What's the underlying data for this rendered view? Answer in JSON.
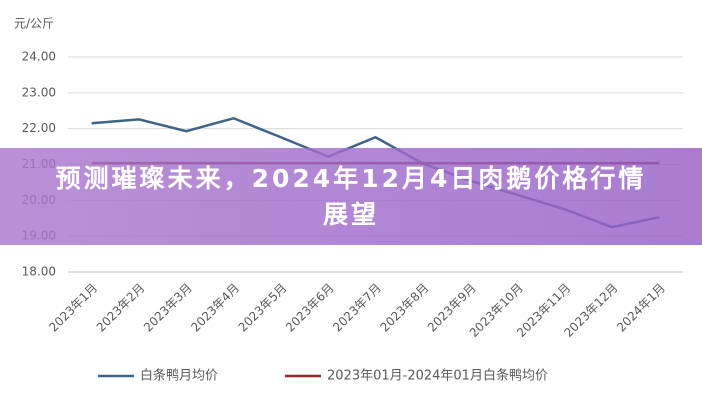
{
  "chart_data": {
    "type": "line",
    "ylabel": "元/公斤",
    "categories": [
      "2023年1月",
      "2023年2月",
      "2023年3月",
      "2023年4月",
      "2023年5月",
      "2023年6月",
      "2023年7月",
      "2023年8月",
      "2023年9月",
      "2023年10月",
      "2023年11月",
      "2023年12月",
      "2024年1月"
    ],
    "series": [
      {
        "name": "白条鸭月均价",
        "color": "#3f6389",
        "values": [
          22.15,
          22.26,
          21.93,
          22.29,
          21.76,
          21.22,
          21.76,
          21.03,
          20.55,
          20.15,
          19.75,
          19.25,
          19.53
        ]
      },
      {
        "name": "2023年01月-2024年01月白条鸭均价",
        "color": "#8b2a2a",
        "values": [
          21.04,
          21.04,
          21.04,
          21.04,
          21.04,
          21.04,
          21.04,
          21.04,
          21.04,
          21.04,
          21.04,
          21.04,
          21.04
        ]
      }
    ],
    "ylim": [
      18,
      24
    ],
    "yticks": [
      {
        "value": 18,
        "label": "18.00"
      },
      {
        "value": 19,
        "label": "19.00"
      },
      {
        "value": 20,
        "label": "20.00"
      },
      {
        "value": 21,
        "label": "21.00"
      },
      {
        "value": 22,
        "label": "22.00"
      },
      {
        "value": 23,
        "label": "23.00"
      },
      {
        "value": 24,
        "label": "24.00"
      }
    ],
    "grid": true
  },
  "banner": {
    "title": "预测璀璨未来，2024年12月4日肉鹅价格行情展望"
  }
}
